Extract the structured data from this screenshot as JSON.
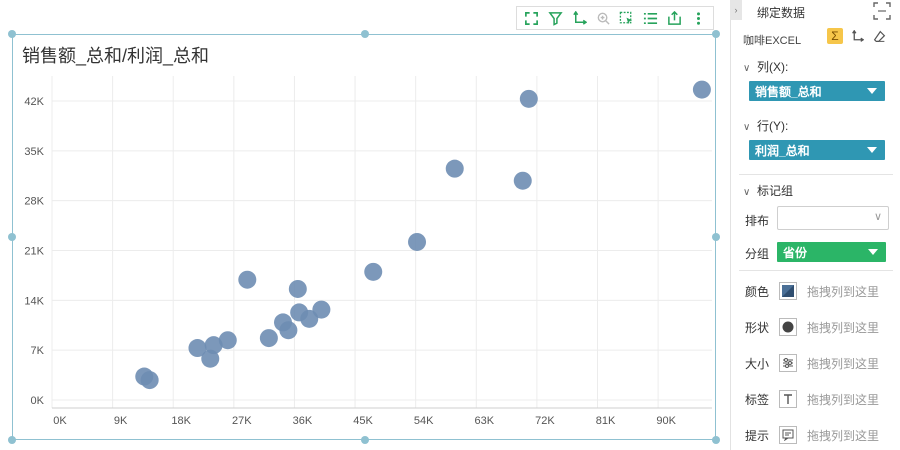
{
  "chart": {
    "title": "销售额_总和/利润_总和",
    "toolbar_icons": [
      "expand-icon",
      "filter-icon",
      "axis-swap-icon",
      "zoom-icon",
      "select-icon",
      "list-icon",
      "export-icon",
      "more-icon"
    ]
  },
  "chart_data": {
    "type": "scatter",
    "title": "销售额_总和/利润_总和",
    "xlabel": "",
    "ylabel": "",
    "xlim": [
      0,
      98000
    ],
    "ylim": [
      0,
      45000
    ],
    "x_ticks": [
      {
        "v": 0,
        "label": "0K"
      },
      {
        "v": 9000,
        "label": "9K"
      },
      {
        "v": 18000,
        "label": "18K"
      },
      {
        "v": 27000,
        "label": "27K"
      },
      {
        "v": 36000,
        "label": "36K"
      },
      {
        "v": 45000,
        "label": "45K"
      },
      {
        "v": 54000,
        "label": "54K"
      },
      {
        "v": 63000,
        "label": "63K"
      },
      {
        "v": 72000,
        "label": "72K"
      },
      {
        "v": 81000,
        "label": "81K"
      },
      {
        "v": 90000,
        "label": "90K"
      }
    ],
    "y_ticks": [
      {
        "v": 0,
        "label": "0K"
      },
      {
        "v": 7000,
        "label": "7K"
      },
      {
        "v": 14000,
        "label": "14K"
      },
      {
        "v": 21000,
        "label": "21K"
      },
      {
        "v": 28000,
        "label": "28K"
      },
      {
        "v": 35000,
        "label": "35K"
      },
      {
        "v": 42000,
        "label": "42K"
      }
    ],
    "grid": true,
    "color": "#6e8db3",
    "points": [
      [
        96500,
        43600
      ],
      [
        70800,
        42300
      ],
      [
        69900,
        30800
      ],
      [
        59800,
        32500
      ],
      [
        54200,
        22200
      ],
      [
        47700,
        18000
      ],
      [
        29000,
        16900
      ],
      [
        36500,
        15600
      ],
      [
        40000,
        12700
      ],
      [
        36700,
        12300
      ],
      [
        38200,
        11400
      ],
      [
        34300,
        10900
      ],
      [
        35100,
        9800
      ],
      [
        32200,
        8700
      ],
      [
        26100,
        8400
      ],
      [
        24000,
        7700
      ],
      [
        21600,
        7300
      ],
      [
        23500,
        5800
      ],
      [
        13700,
        3300
      ],
      [
        14500,
        2800
      ]
    ]
  },
  "panel": {
    "title": "绑定数据",
    "source": "咖啡EXCEL",
    "columns_label": "列(X):",
    "columns_field": "销售额_总和",
    "rows_label": "行(Y):",
    "rows_field": "利润_总和",
    "marks_label": "标记组",
    "layout_label": "排布",
    "layout_value": "",
    "group_label": "分组",
    "group_field": "省份",
    "drops": [
      {
        "label": "颜色",
        "icon": "color-icon",
        "text": "拖拽列到这里"
      },
      {
        "label": "形状",
        "icon": "shape-icon",
        "text": "拖拽列到这里"
      },
      {
        "label": "大小",
        "icon": "size-icon",
        "text": "拖拽列到这里"
      },
      {
        "label": "标签",
        "icon": "label-icon",
        "text": "拖拽列到这里"
      },
      {
        "label": "提示",
        "icon": "tooltip-icon",
        "text": "拖拽列到这里"
      }
    ]
  }
}
